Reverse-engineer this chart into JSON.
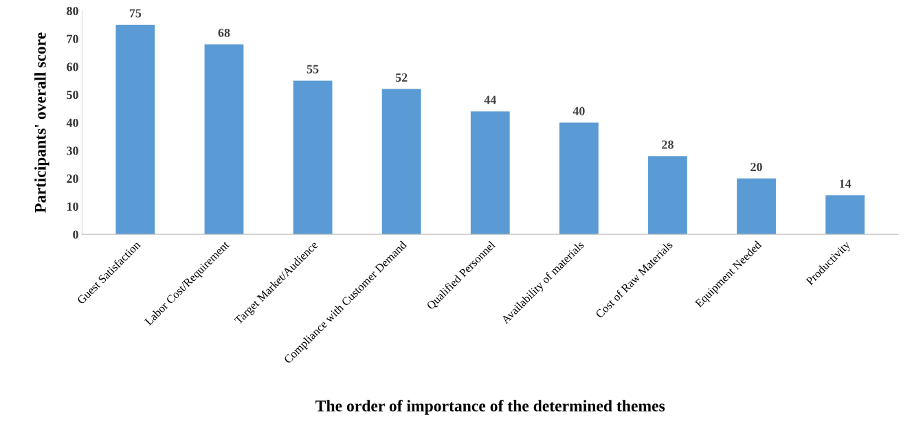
{
  "chart_data": {
    "type": "bar",
    "xlabel": "The order of importance of the determined themes",
    "ylabel": "Participants' overall score",
    "categories": [
      "Guest Satisfaction",
      "Labor Cost/Requirement",
      "Target Market/Audience",
      "Compliance with Customer Demand",
      "Qualified Personnel",
      "Availability of materials",
      "Cost of Raw Materials",
      "Equipment Needed",
      "Productivity"
    ],
    "values": [
      75,
      68,
      55,
      52,
      44,
      40,
      28,
      20,
      14
    ],
    "color": "#5b9bd5",
    "ylim": [
      0,
      80
    ],
    "yticks": [
      0,
      10,
      20,
      30,
      40,
      50,
      60,
      70,
      80
    ],
    "data_labels": true,
    "grid": false,
    "legend": false
  }
}
